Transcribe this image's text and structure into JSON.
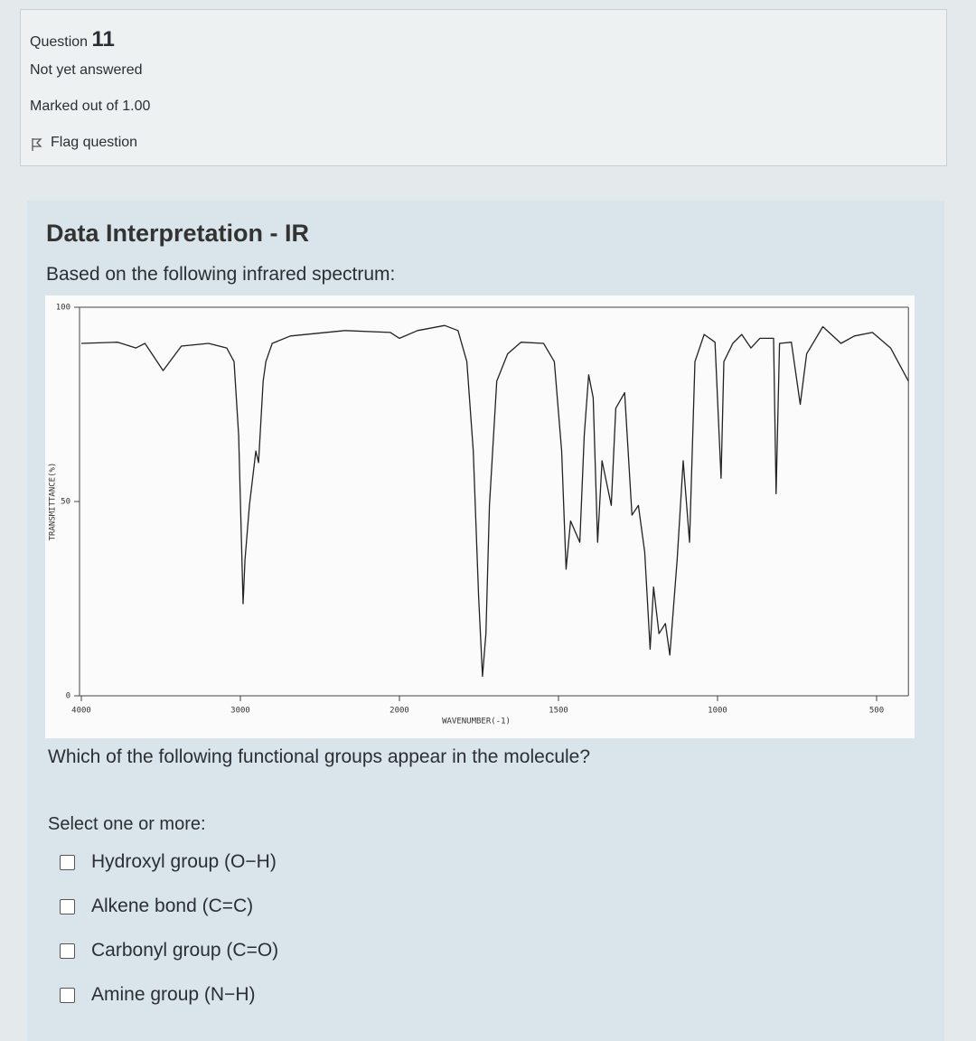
{
  "question": {
    "label": "Question",
    "number": 11,
    "status": "Not yet answered",
    "marks": "Marked out of 1.00",
    "flag": "Flag question"
  },
  "content": {
    "heading": "Data Interpretation - IR",
    "intro": "Based on the following infrared spectrum:",
    "prompt": "Which of the following functional groups appear in the molecule?",
    "instruction": "Select one or more:",
    "options": [
      "Hydroxyl group (O−H)",
      "Alkene bond (C=C)",
      "Carbonyl group (C=O)",
      "Amine group (N−H)"
    ]
  },
  "chart_data": {
    "type": "line",
    "xlabel": "WAVENUMBER(-1)",
    "ylabel": "TRANSMITTANCE(%)",
    "x": [
      4000,
      3771,
      3657,
      3600,
      3486,
      3371,
      3200,
      3086,
      3040,
      3011,
      2983,
      2971,
      2943,
      2903,
      2886,
      2857,
      2840,
      2800,
      2686,
      2343,
      2057,
      2000,
      1943,
      1858,
      1816,
      1788,
      1768,
      1751,
      1739,
      1728,
      1717,
      1694,
      1660,
      1618,
      1547,
      1513,
      1490,
      1476,
      1462,
      1433,
      1419,
      1405,
      1391,
      1377,
      1363,
      1334,
      1320,
      1292,
      1269,
      1249,
      1229,
      1212,
      1201,
      1184,
      1164,
      1150,
      1127,
      1108,
      1088,
      1071,
      1042,
      1008,
      989,
      980,
      952,
      924,
      895,
      867,
      824,
      816,
      805,
      768,
      740,
      720,
      669,
      612,
      570,
      513,
      456,
      400
    ],
    "values": [
      90.7,
      91,
      89.5,
      90.7,
      83.7,
      90,
      90.7,
      89.5,
      86,
      67,
      23.7,
      35,
      49,
      63,
      60,
      81,
      86,
      90.7,
      92.6,
      94,
      93.5,
      92,
      94,
      95.3,
      94,
      86,
      63,
      25.6,
      5,
      16,
      49,
      81,
      88,
      91,
      90.7,
      86,
      63,
      32.6,
      45,
      39.5,
      67,
      82.6,
      76.7,
      39.5,
      60.5,
      49,
      74,
      78,
      46.5,
      49,
      37,
      12,
      28,
      16,
      18.6,
      10.5,
      35,
      60.5,
      39.5,
      86,
      93,
      91,
      56,
      86,
      90.7,
      93,
      89.5,
      92,
      92,
      52,
      90.7,
      91,
      75,
      88,
      95,
      90.7,
      92.6,
      93.5,
      89.5,
      81
    ],
    "xlim": [
      4000,
      400
    ],
    "ylim": [
      0,
      100
    ],
    "xticks": [
      4000,
      3000,
      2000,
      1500,
      1000,
      500
    ],
    "yticks": [
      0,
      50,
      100
    ],
    "color": "#222222"
  }
}
